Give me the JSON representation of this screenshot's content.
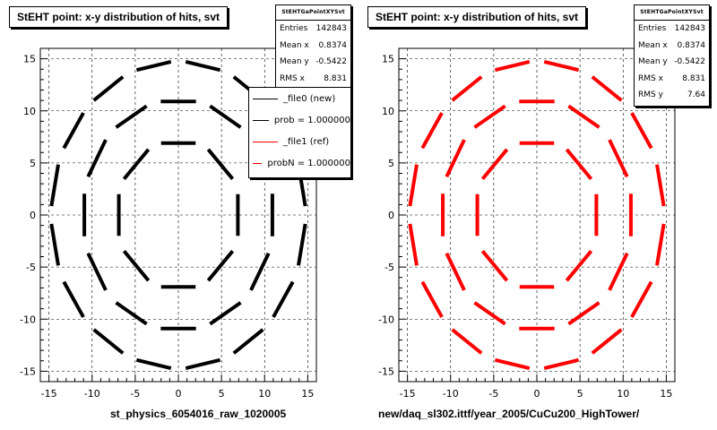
{
  "panels": [
    {
      "title": "StEHT point: x-y distribution of hits, svt",
      "caption": "st_physics_6054016_raw_1020005",
      "stats": {
        "name": "StEHTGaPointXYSvt",
        "rows": [
          {
            "label": "Entries",
            "value": "142843"
          },
          {
            "label": "Mean x",
            "value": "0.8374"
          },
          {
            "label": "Mean y",
            "value": "-0.5422"
          },
          {
            "label": "RMS x",
            "value": "8.831"
          }
        ]
      },
      "legend": [
        {
          "label": "_file0 (new)",
          "color": "#000000"
        },
        {
          "label": "prob = 1.000000",
          "color": "#000000"
        },
        {
          "label": "_file1 (ref)",
          "color": "#ff0000"
        },
        {
          "label": "probN = 1.000000",
          "color": "#ff0000"
        }
      ]
    },
    {
      "title": "StEHT point: x-y distribution of hits, svt",
      "caption": "new/daq_sl302.ittf/year_2005/CuCu200_HighTower/",
      "stats": {
        "name": "StEHTGaPointXYSvt",
        "rows": [
          {
            "label": "Entries",
            "value": "142843"
          },
          {
            "label": "Mean x",
            "value": "0.8374"
          },
          {
            "label": "Mean y",
            "value": "-0.5422"
          },
          {
            "label": "RMS x",
            "value": "8.831"
          },
          {
            "label": "RMS y",
            "value": "7.64"
          }
        ]
      }
    }
  ],
  "chart_data": [
    {
      "type": "scatter",
      "title": "StEHT point: x-y distribution of hits, svt",
      "xlabel": "",
      "ylabel": "",
      "xlim": [
        -16,
        16
      ],
      "ylim": [
        -16,
        16
      ],
      "xticks": [
        -15,
        -10,
        -5,
        0,
        5,
        10,
        15
      ],
      "yticks": [
        -15,
        -10,
        -5,
        0,
        5,
        10,
        15
      ],
      "grid": true,
      "color": "#000000",
      "layers": [
        {
          "name": "",
          "radius": 6.9,
          "segments": 8,
          "rotation_deg": 0,
          "segment_fraction": 0.7
        },
        {
          "name": "",
          "radius": 10.9,
          "segments": 12,
          "rotation_deg": 0,
          "segment_fraction": 0.7
        },
        {
          "name": "",
          "radius": 14.6,
          "segments": 16,
          "rotation_deg": 11.25,
          "segment_fraction": 0.7
        }
      ]
    },
    {
      "type": "scatter",
      "title": "StEHT point: x-y distribution of hits, svt",
      "xlabel": "",
      "ylabel": "",
      "xlim": [
        -16,
        16
      ],
      "ylim": [
        -16,
        16
      ],
      "xticks": [
        -15,
        -10,
        -5,
        0,
        5,
        10,
        15
      ],
      "yticks": [
        -15,
        -10,
        -5,
        0,
        5,
        10,
        15
      ],
      "grid": true,
      "color": "#ff0000",
      "layers": [
        {
          "name": "",
          "radius": 6.9,
          "segments": 8,
          "rotation_deg": 0,
          "segment_fraction": 0.7
        },
        {
          "name": "",
          "radius": 10.9,
          "segments": 12,
          "rotation_deg": 0,
          "segment_fraction": 0.7
        },
        {
          "name": "",
          "radius": 14.6,
          "segments": 16,
          "rotation_deg": 11.25,
          "segment_fraction": 0.7
        }
      ]
    }
  ]
}
